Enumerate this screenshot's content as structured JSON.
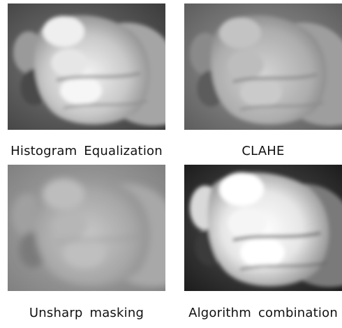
{
  "panels": [
    {
      "id": "histogram-equalization",
      "caption": "Histogram Equalization"
    },
    {
      "id": "clahe",
      "caption": "CLAHE"
    },
    {
      "id": "unsharp-masking",
      "caption": "Unsharp masking"
    },
    {
      "id": "algorithm-combination",
      "caption": "Algorithm combination"
    }
  ]
}
